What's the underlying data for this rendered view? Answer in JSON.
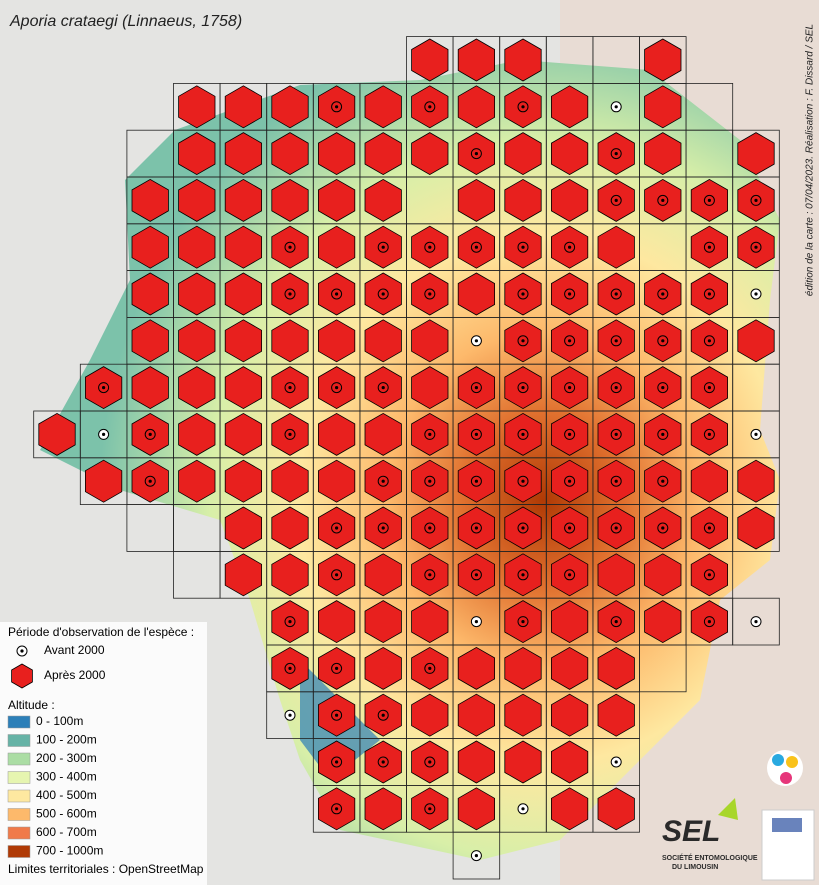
{
  "map": {
    "title": "Aporia crataegi (Linnaeus, 1758)",
    "credit": "édition de la carte : 07/04/2023. Réalisation : F. Dissard / SEL",
    "legend": {
      "period_title": "Période d'observation de l'espèce :",
      "before": "Avant 2000",
      "after": "Après 2000",
      "altitude_title": "Altitude :",
      "altitude": [
        {
          "label": "0 - 100m",
          "color": "#2c7fb8"
        },
        {
          "label": "100 - 200m",
          "color": "#66b3a6"
        },
        {
          "label": "200 - 300m",
          "color": "#abdda4"
        },
        {
          "label": "300 - 400m",
          "color": "#e6f5b0"
        },
        {
          "label": "400 - 500m",
          "color": "#fee8a0"
        },
        {
          "label": "500 - 600m",
          "color": "#fdb96b"
        },
        {
          "label": "600 - 700m",
          "color": "#f07a4a"
        },
        {
          "label": "700 - 1000m",
          "color": "#b03a05"
        }
      ],
      "source": "Limites territoriales : OpenStreetMap"
    },
    "logo": {
      "name": "SEL",
      "line1": "SOCIÉTÉ ENTOMOLOGIQUE",
      "line2": "DU LIMOUSIN"
    },
    "grid": [
      "........HHHeeH..",
      "...HHHDHDHDHoHe.",
      "..eHHHHHHDHHDHeH",
      "..HHHHHHeHHHDDDD",
      "..HHHDHDDDDDHeDD",
      "..HHHDDDDHDDDDDo",
      "..HHHHHHHoDDDDDH",
      ".DHHHDDDHDDDDDDe",
      "HoDHHDHHDDDDDDDo",
      ".HDHHHHDDDDDDDHH",
      "..eeHHDDDDDDDDDH",
      "...eHHDHDDDDHHD.",
      ".....DHHHoDHDHDo",
      ".....DDHDHHHHe..",
      ".....oDDHHHHH...",
      "......DDDHHHo...",
      "......DHDHoHH...",
      ".........o......"
    ],
    "hex_color": "#e8201e"
  }
}
